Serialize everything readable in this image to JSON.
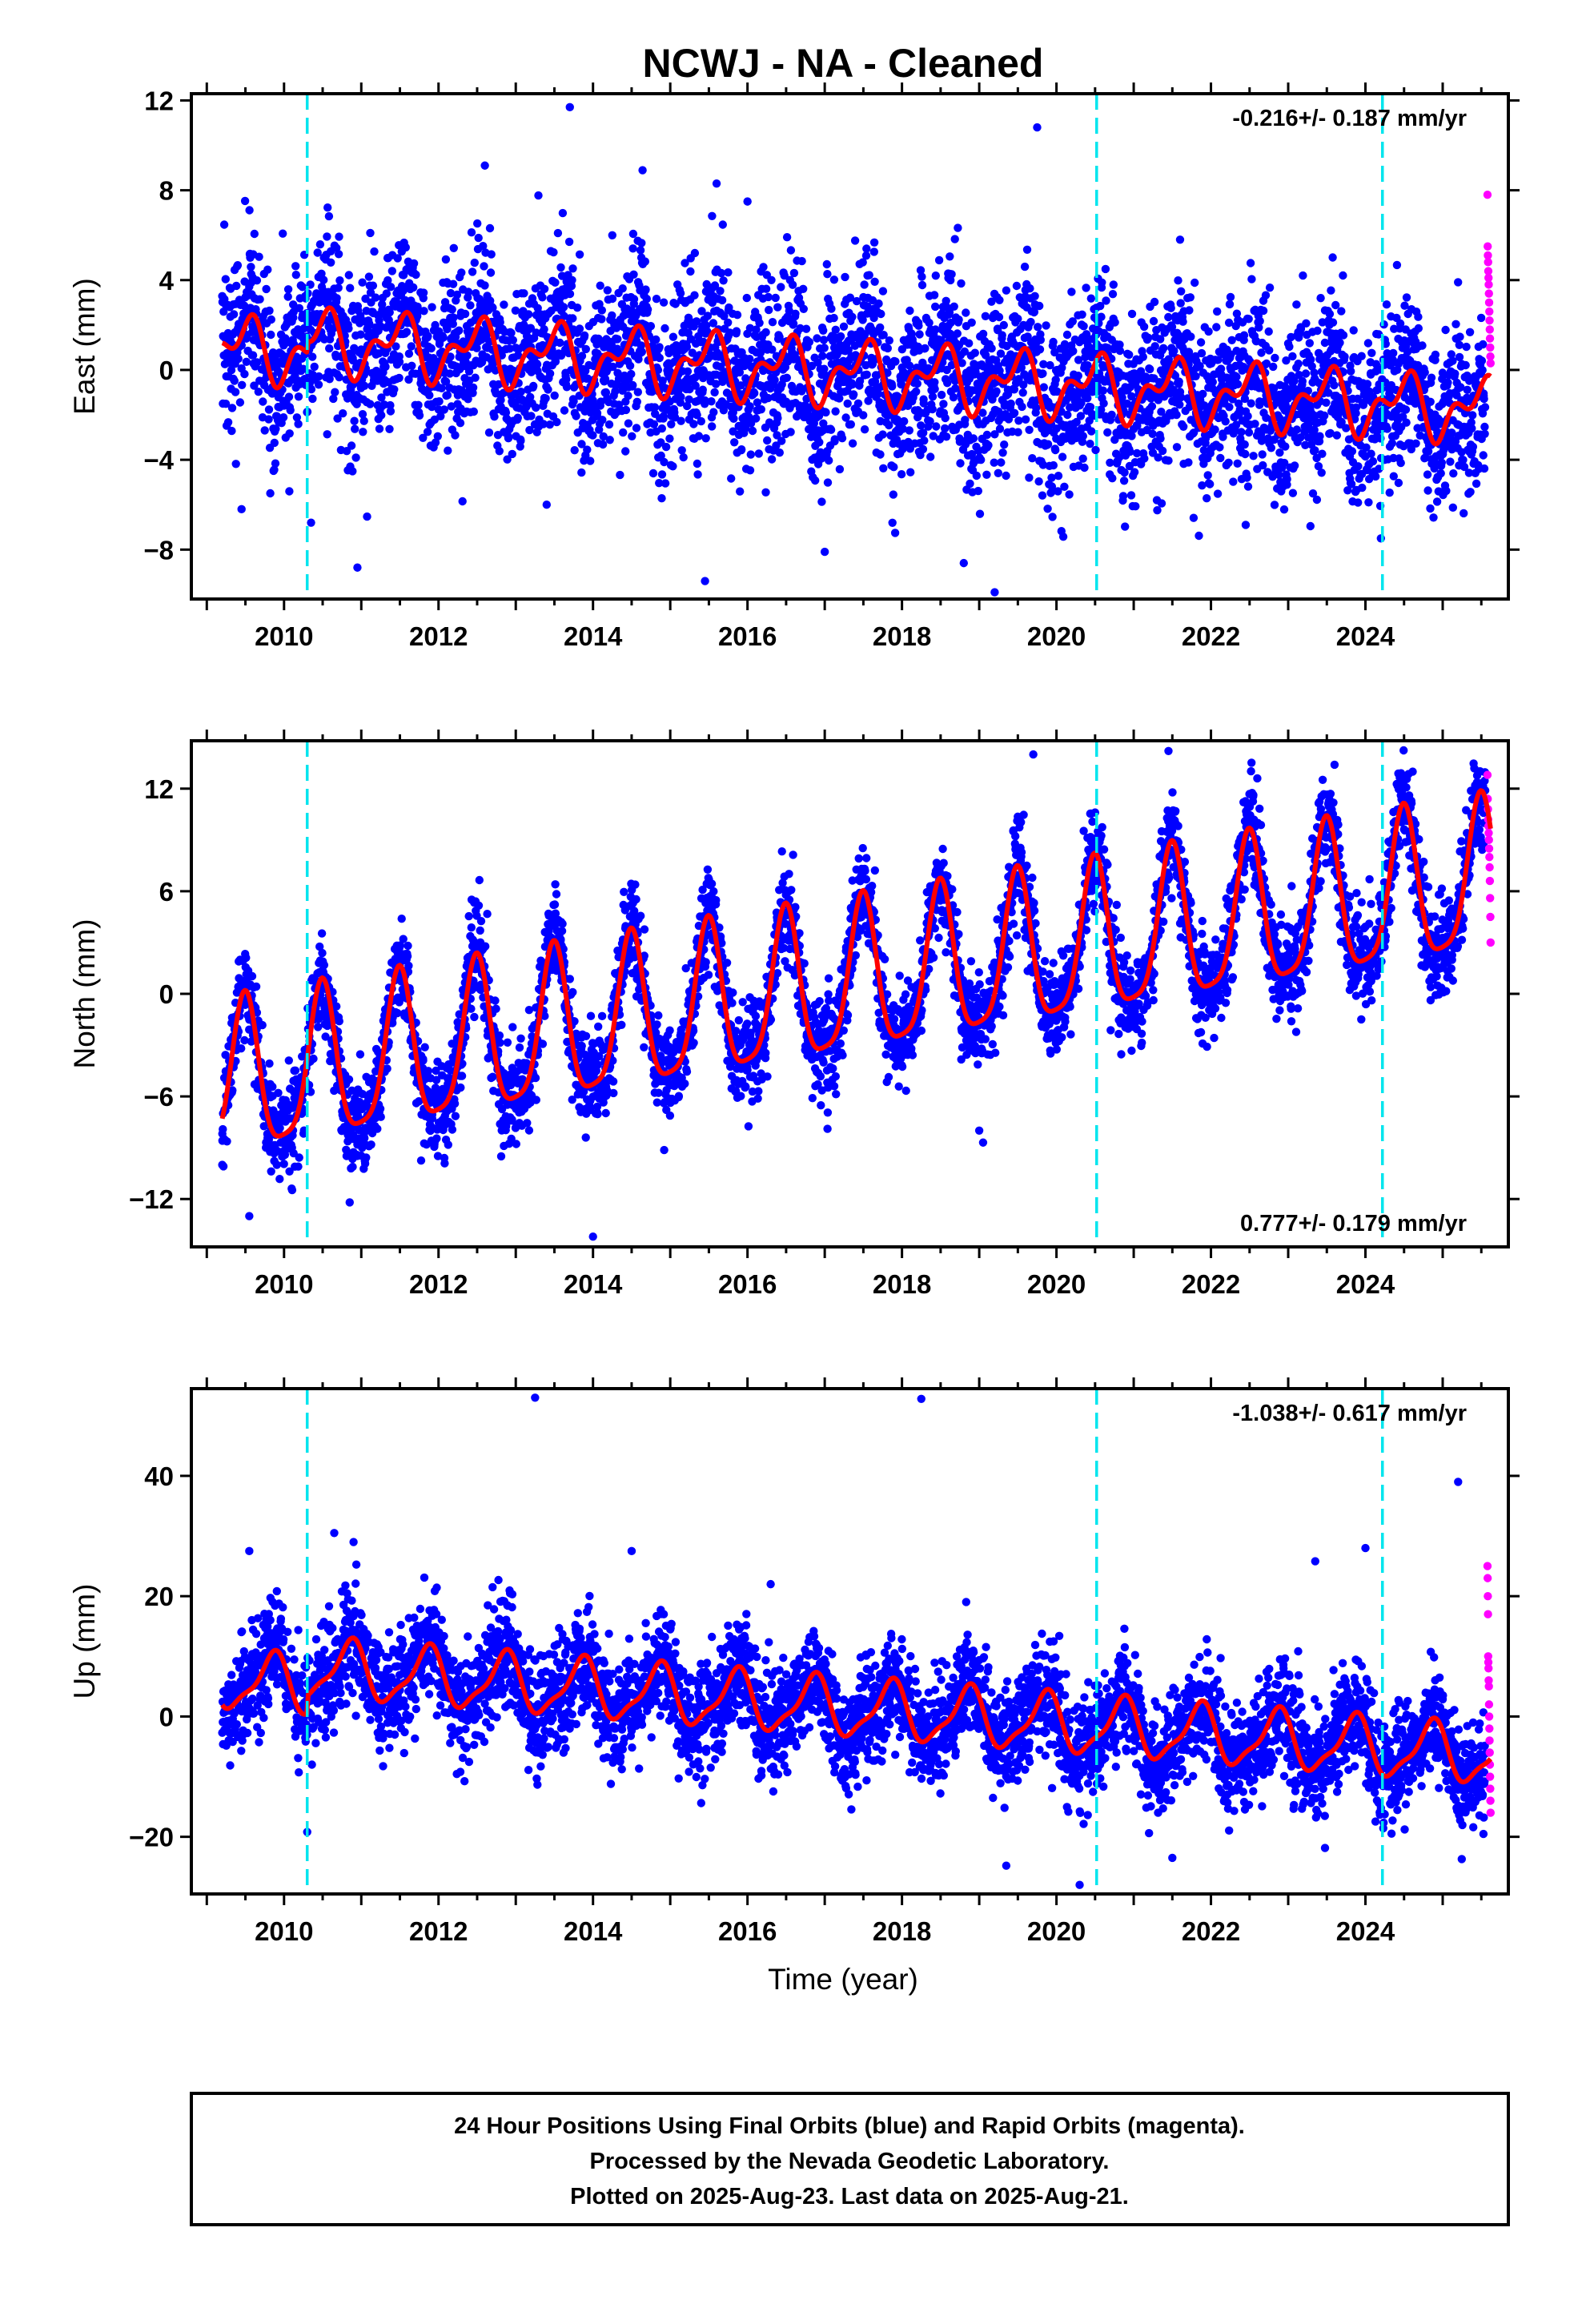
{
  "title": "NCWJ  - NA - Cleaned",
  "xlabel": "Time (year)",
  "colors": {
    "final_orbits": "#0000ff",
    "rapid_orbits": "#ff00ff",
    "model_fit": "#ff0000",
    "equipment_change": "#00e5ee"
  },
  "footer": [
    "24 Hour Positions Using Final Orbits (blue) and Rapid Orbits (magenta).",
    "Processed by the Nevada Geodetic Laboratory.",
    "Plotted on 2025-Aug-23. Last data on 2025-Aug-21."
  ],
  "chart_data": [
    {
      "type": "scatter",
      "ylabel": "East (mm)",
      "rate_label": "-0.216+/- 0.187 mm/yr",
      "rate_position": "top-right",
      "xlim": [
        2008.8,
        2025.85
      ],
      "ylim": [
        -10.2,
        12.3
      ],
      "yticks": [
        -8,
        -4,
        0,
        4,
        8,
        12
      ],
      "xticks": [
        2010,
        2012,
        2014,
        2016,
        2018,
        2020,
        2022,
        2024
      ],
      "vlines": [
        2010.3,
        2020.52,
        2024.22
      ],
      "model": {
        "offset": 1.0,
        "trend_mm_per_yr": -0.2,
        "annual_amp": 1.1,
        "annual_phase_yr": 0.49,
        "semiannual_amp": 0.75,
        "semiannual_phase_yr": 0.13,
        "step_at_2010_3": 0.5
      },
      "scatter": {
        "t_start": 2009.2,
        "t_end": 2025.55,
        "noise_sd": 1.9
      },
      "outliers": [
        [
          2010.35,
          -6.8
        ],
        [
          2009.45,
          -6.2
        ],
        [
          2010.95,
          -8.8
        ],
        [
          2013.7,
          11.7
        ],
        [
          2012.6,
          9.1
        ],
        [
          2013.4,
          -6.0
        ],
        [
          2015.45,
          -9.4
        ],
        [
          2015.6,
          8.3
        ],
        [
          2016.0,
          7.5
        ],
        [
          2017.0,
          -8.1
        ],
        [
          2018.8,
          -8.6
        ],
        [
          2019.2,
          -9.9
        ],
        [
          2019.75,
          10.8
        ],
        [
          2021.6,
          5.8
        ],
        [
          2024.2,
          -7.5
        ],
        [
          2021.3,
          -5.8
        ],
        [
          2022.45,
          -6.9
        ]
      ],
      "rapid": {
        "t_start": 2025.58,
        "t_end": 2025.62,
        "values": [
          7.8,
          5.5,
          5.1,
          4.8,
          4.4,
          4.1,
          3.8,
          3.4,
          3.0,
          2.6,
          2.2,
          1.8,
          1.4,
          1.0,
          0.6,
          0.3
        ]
      }
    },
    {
      "type": "scatter",
      "ylabel": "North (mm)",
      "rate_label": "0.777+/- 0.179 mm/yr",
      "rate_position": "bottom-right",
      "xlim": [
        2008.8,
        2025.85
      ],
      "ylim": [
        -14.8,
        14.8
      ],
      "yticks": [
        -12,
        -6,
        0,
        6,
        12
      ],
      "xticks": [
        2010,
        2012,
        2014,
        2016,
        2018,
        2020,
        2022,
        2024
      ],
      "vlines": [
        2010.3,
        2020.52,
        2024.22
      ],
      "model": {
        "offset": -5.4,
        "trend_mm_per_yr": 0.73,
        "annual_amp": 4.4,
        "annual_phase_yr": 0.49,
        "semiannual_amp": 1.0,
        "semiannual_phase_yr": 0.0
      },
      "scatter": {
        "t_start": 2009.2,
        "t_end": 2025.55,
        "noise_sd": 1.4
      },
      "outliers": [
        [
          2009.55,
          -13.0
        ],
        [
          2010.85,
          -12.2
        ],
        [
          2014.0,
          -14.2
        ],
        [
          2019.05,
          -8.7
        ],
        [
          2019.0,
          -8.0
        ],
        [
          2019.7,
          14.0
        ],
        [
          2021.45,
          14.2
        ],
        [
          2022.6,
          12.6
        ],
        [
          2023.6,
          13.4
        ],
        [
          2009.2,
          -10.0
        ]
      ],
      "rapid": {
        "t_start": 2025.58,
        "t_end": 2025.62,
        "values": [
          12.8,
          11.4,
          10.8,
          10.2,
          9.8,
          9.4,
          9.0,
          8.5,
          8.0,
          7.4,
          6.6,
          5.6,
          4.5,
          3.0
        ]
      }
    },
    {
      "type": "scatter",
      "ylabel": "Up (mm)",
      "rate_label": "-1.038+/- 0.617 mm/yr",
      "rate_position": "top-right",
      "xlim": [
        2008.8,
        2025.85
      ],
      "ylim": [
        -29.5,
        54.5
      ],
      "yticks": [
        -20,
        0,
        20,
        40
      ],
      "xticks": [
        2010,
        2012,
        2014,
        2016,
        2018,
        2020,
        2022,
        2024
      ],
      "vlines": [
        2010.3,
        2020.52,
        2024.22
      ],
      "model": {
        "offset": 6.0,
        "trend_mm_per_yr": -0.95,
        "annual_amp": 4.6,
        "annual_phase_yr": 0.85,
        "semiannual_amp": 1.4,
        "semiannual_phase_yr": 0.43,
        "step_at_2010_3": 3.0
      },
      "scatter": {
        "t_start": 2009.2,
        "t_end": 2025.55,
        "noise_sd": 4.5
      },
      "outliers": [
        [
          2013.25,
          53.0
        ],
        [
          2018.25,
          52.8
        ],
        [
          2025.2,
          39.0
        ],
        [
          2010.3,
          -19.2
        ],
        [
          2019.35,
          -24.8
        ],
        [
          2020.3,
          -28.0
        ],
        [
          2023.35,
          25.8
        ],
        [
          2024.0,
          28.0
        ],
        [
          2014.5,
          27.5
        ],
        [
          2009.55,
          27.5
        ],
        [
          2021.5,
          -23.5
        ],
        [
          2010.65,
          30.5
        ],
        [
          2010.9,
          29.0
        ],
        [
          2016.3,
          22.0
        ],
        [
          2012.7,
          21.5
        ]
      ],
      "rapid": {
        "t_start": 2025.58,
        "t_end": 2025.62,
        "values": [
          25.0,
          23.0,
          20.0,
          17.0,
          10.0,
          9.0,
          8.0,
          6.0,
          5.0,
          2.0,
          0.0,
          -2.0,
          -4.0,
          -6.0,
          -8.0,
          -10.0,
          -12.0,
          -14.0,
          -16.0
        ]
      }
    }
  ]
}
